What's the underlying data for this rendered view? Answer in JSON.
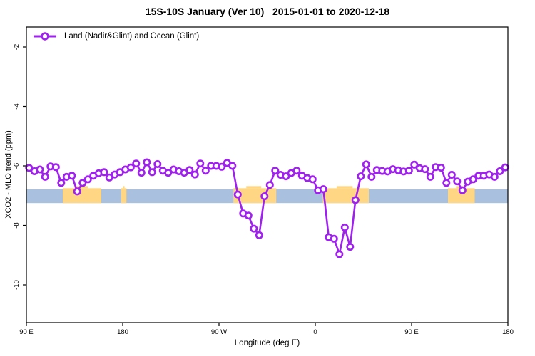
{
  "title": "15S-10S January (Ver 10)   2015-01-01 to 2020-12-18",
  "legend": {
    "label": "Land (Nadir&Glint) and Ocean (Glint)",
    "marker": "open-circle-on-line",
    "color": "#A020F0"
  },
  "axes": {
    "x": {
      "label": "Longitude (deg E)",
      "tick_labels": [
        "90 E",
        "180",
        "90 W",
        "0",
        "90 E",
        "180"
      ],
      "tick_lons": [
        90,
        180,
        270,
        360,
        450,
        540
      ],
      "range_deg_east_extended": [
        90,
        540
      ]
    },
    "y": {
      "label": "XCO2 - MLO trend (ppm)",
      "tick_values": [
        -2,
        -4,
        -6,
        -8,
        -10
      ],
      "range": [
        -11.3,
        -1.3
      ]
    }
  },
  "chart_data": {
    "type": "line",
    "title": "15S-10S January (Ver 10)   2015-01-01 to 2020-12-18",
    "xlabel": "Longitude (deg E)",
    "ylabel": "XCO2 - MLO trend (ppm)",
    "xlim": [
      90,
      540
    ],
    "ylim": [
      -11.3,
      -1.3
    ],
    "grid": false,
    "legend_position": "top-left",
    "series_name": "Land (Nadir&Glint) and Ocean (Glint)",
    "line_color": "#A020F0",
    "marker": "open-circle",
    "x": [
      92.5,
      97.5,
      102.5,
      107.5,
      112.5,
      117.5,
      122.5,
      127.5,
      132.5,
      137.5,
      142.5,
      147.5,
      152.5,
      157.5,
      162.5,
      167.5,
      172.5,
      177.5,
      182.5,
      187.5,
      192.5,
      197.5,
      202.5,
      207.5,
      212.5,
      217.5,
      222.5,
      227.5,
      232.5,
      237.5,
      242.5,
      247.5,
      252.5,
      257.5,
      262.5,
      267.5,
      272.5,
      277.5,
      282.5,
      287.5,
      292.5,
      297.5,
      302.5,
      307.5,
      312.5,
      317.5,
      322.5,
      327.5,
      332.5,
      337.5,
      342.5,
      347.5,
      352.5,
      357.5,
      362.5,
      367.5,
      372.5,
      377.5,
      382.5,
      387.5,
      392.5,
      397.5,
      402.5,
      407.5,
      412.5,
      417.5,
      422.5,
      427.5,
      432.5,
      437.5,
      442.5,
      447.5,
      452.5,
      457.5,
      462.5,
      467.5,
      472.5,
      477.5,
      482.5,
      487.5,
      492.5,
      497.5,
      502.5,
      507.5,
      512.5,
      517.5,
      522.5,
      527.5,
      532.5,
      537.5
    ],
    "y": [
      -6.07,
      -6.18,
      -6.12,
      -6.37,
      -6.02,
      -6.04,
      -6.57,
      -6.37,
      -6.33,
      -6.86,
      -6.57,
      -6.45,
      -6.33,
      -6.25,
      -6.21,
      -6.39,
      -6.29,
      -6.21,
      -6.12,
      -6.05,
      -5.92,
      -6.23,
      -5.88,
      -6.21,
      -5.94,
      -6.16,
      -6.23,
      -6.12,
      -6.18,
      -6.23,
      -6.14,
      -6.29,
      -5.92,
      -6.16,
      -6.0,
      -6.0,
      -6.03,
      -5.9,
      -6.0,
      -6.96,
      -7.6,
      -7.67,
      -8.11,
      -8.33,
      -7.02,
      -6.64,
      -6.16,
      -6.3,
      -6.35,
      -6.24,
      -6.16,
      -6.33,
      -6.41,
      -6.45,
      -6.82,
      -6.78,
      -8.4,
      -8.45,
      -8.97,
      -8.07,
      -8.72,
      -7.15,
      -6.35,
      -5.95,
      -6.37,
      -6.14,
      -6.17,
      -6.19,
      -6.11,
      -6.15,
      -6.19,
      -6.16,
      -5.96,
      -6.08,
      -6.11,
      -6.37,
      -6.04,
      -6.06,
      -6.57,
      -6.3,
      -6.52,
      -6.82,
      -6.53,
      -6.45,
      -6.33,
      -6.33,
      -6.29,
      -6.37,
      -6.18,
      -6.05
    ],
    "reference_bands": {
      "blue_band": {
        "color": "#A9C1DE",
        "value_top": -6.79,
        "value_bottom": -7.25,
        "lon_from": 90,
        "lon_to": 540
      },
      "orange_patches": {
        "color": "#FFD784",
        "value_top": -6.75,
        "value_bottom": -7.25,
        "lon_ranges": [
          [
            124,
            160
          ],
          [
            178.5,
            183.5
          ],
          [
            283.5,
            323.5
          ],
          [
            367,
            410
          ],
          [
            484,
            509
          ]
        ]
      }
    }
  }
}
